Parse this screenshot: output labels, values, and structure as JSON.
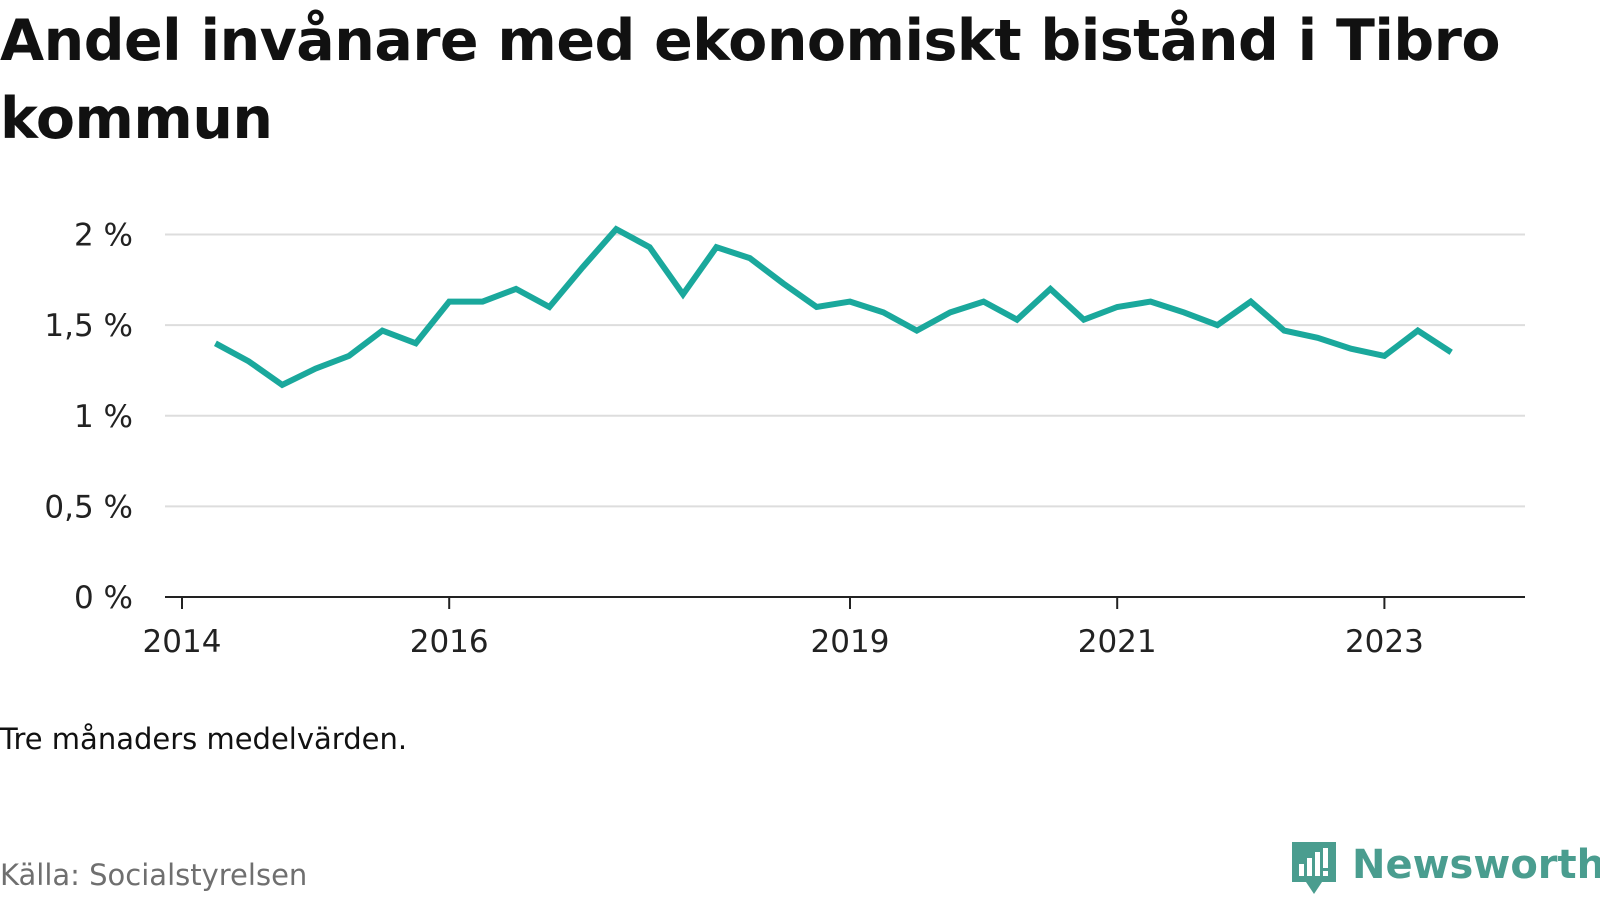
{
  "title": "Andel invånare med ekonomiskt bistånd i Tibro kommun",
  "note": "Tre månaders medelvärden.",
  "source": "Källa: Socialstyrelsen",
  "brand": {
    "name": "Newsworthy",
    "color": "#4a9d8f"
  },
  "colors": {
    "line": "#1aa89c",
    "grid": "#dddddd",
    "axis": "#222222"
  },
  "chart_data": {
    "type": "line",
    "title": "Andel invånare med ekonomiskt bistånd i Tibro kommun",
    "xlabel": "",
    "ylabel": "",
    "ylim": [
      0,
      2
    ],
    "yticks": [
      0,
      0.5,
      1,
      1.5,
      2
    ],
    "ytick_labels": [
      "0 %",
      "0,5 %",
      "1 %",
      "1,5 %",
      "2 %"
    ],
    "xticks": [
      2014,
      2016,
      2019,
      2021,
      2023
    ],
    "xtick_labels": [
      "2014",
      "2016",
      "2019",
      "2021",
      "2023"
    ],
    "grid": true,
    "series": [
      {
        "x": [
          "2014-04",
          "2014-07",
          "2014-10",
          "2015-01",
          "2015-04",
          "2015-07",
          "2015-10",
          "2016-01",
          "2016-04",
          "2016-07",
          "2016-10",
          "2017-01",
          "2017-04",
          "2017-07",
          "2017-10",
          "2018-01",
          "2018-04",
          "2018-07",
          "2018-10",
          "2019-01",
          "2019-04",
          "2019-07",
          "2019-10",
          "2020-01",
          "2020-04",
          "2020-07",
          "2020-10",
          "2021-01",
          "2021-04",
          "2021-07",
          "2021-10",
          "2022-01",
          "2022-04",
          "2022-07",
          "2022-10",
          "2023-01",
          "2023-04",
          "2023-07"
        ],
        "values": [
          1.4,
          1.3,
          1.17,
          1.26,
          1.33,
          1.47,
          1.4,
          1.63,
          1.63,
          1.7,
          1.6,
          1.82,
          2.03,
          1.93,
          1.67,
          1.93,
          1.87,
          1.73,
          1.6,
          1.63,
          1.57,
          1.47,
          1.57,
          1.63,
          1.53,
          1.7,
          1.53,
          1.6,
          1.63,
          1.57,
          1.5,
          1.63,
          1.47,
          1.43,
          1.37,
          1.33,
          1.47,
          1.35
        ]
      }
    ]
  }
}
